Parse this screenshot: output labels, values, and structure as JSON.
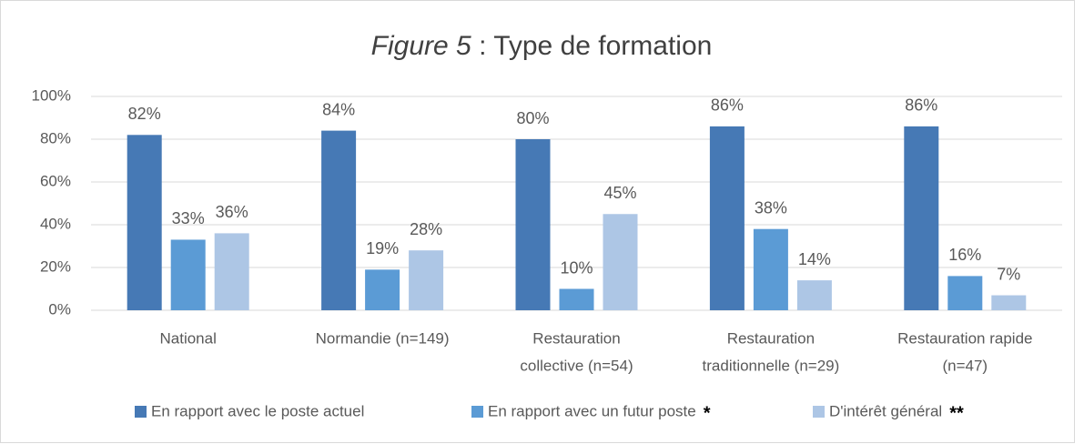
{
  "chart_data": {
    "type": "bar",
    "title_prefix": "Figure 5",
    "title": ": Type de formation",
    "categories": [
      [
        "National"
      ],
      [
        "Normandie (n=149)"
      ],
      [
        "Restauration",
        "collective (n=54)"
      ],
      [
        "Restauration",
        "traditionnelle (n=29)"
      ],
      [
        "Restauration rapide",
        "(n=47)"
      ]
    ],
    "series": [
      {
        "name": "En rapport avec le poste actuel",
        "color": "#4679b5",
        "values": [
          82,
          84,
          80,
          86,
          86
        ],
        "value_labels": [
          "82%",
          "84%",
          "80%",
          "86%",
          "86%"
        ]
      },
      {
        "name": "En rapport avec un futur poste",
        "note": "*",
        "color": "#5b9bd5",
        "values": [
          33,
          19,
          10,
          38,
          16
        ],
        "value_labels": [
          "33%",
          "19%",
          "10%",
          "38%",
          "16%"
        ]
      },
      {
        "name": "D'intérêt général",
        "note": "**",
        "color": "#adc6e5",
        "values": [
          36,
          28,
          45,
          14,
          7
        ],
        "value_labels": [
          "36%",
          "28%",
          "45%",
          "14%",
          "7%"
        ]
      }
    ],
    "ylim": [
      0,
      100
    ],
    "yticks": [
      {
        "value": 0,
        "label": "0%"
      },
      {
        "value": 20,
        "label": "20%"
      },
      {
        "value": 40,
        "label": "40%"
      },
      {
        "value": 60,
        "label": "60%"
      },
      {
        "value": 80,
        "label": "80%"
      },
      {
        "value": 100,
        "label": "100%"
      }
    ],
    "grid": true,
    "legend": "bottom"
  }
}
